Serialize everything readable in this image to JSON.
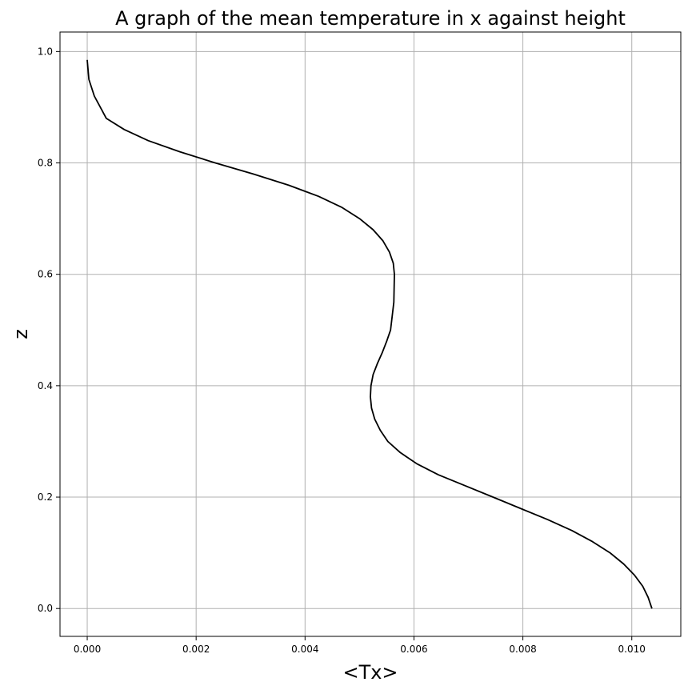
{
  "chart_data": {
    "type": "line",
    "title": "A graph of the mean temperature in x against height",
    "xlabel": "<Tx>",
    "ylabel": "z",
    "xlim": [
      -0.0005,
      0.0109
    ],
    "ylim": [
      -0.05,
      1.035
    ],
    "xticks": [
      0.0,
      0.002,
      0.004,
      0.006,
      0.008,
      0.01
    ],
    "xtick_labels": [
      "0.000",
      "0.002",
      "0.004",
      "0.006",
      "0.008",
      "0.010"
    ],
    "yticks": [
      0.0,
      0.2,
      0.4,
      0.6,
      0.8,
      1.0
    ],
    "ytick_labels": [
      "0.0",
      "0.2",
      "0.4",
      "0.6",
      "0.8",
      "1.0"
    ],
    "grid": true,
    "series": [
      {
        "color": "#000000",
        "x": [
          0.01037,
          0.0103,
          0.0102,
          0.01005,
          0.00985,
          0.0096,
          0.00928,
          0.0089,
          0.00845,
          0.00795,
          0.00745,
          0.00695,
          0.00645,
          0.00605,
          0.00575,
          0.00552,
          0.00538,
          0.00528,
          0.00522,
          0.0052,
          0.00521,
          0.00525,
          0.00533,
          0.00542,
          0.0055,
          0.00557,
          0.00563,
          0.00564,
          0.00562,
          0.00555,
          0.00543,
          0.00525,
          0.005,
          0.00468,
          0.00425,
          0.0037,
          0.00305,
          0.00235,
          0.0017,
          0.00112,
          0.00068,
          0.00035,
          0.00013,
          3e-05,
          0.0
        ],
        "y": [
          0.0,
          0.02,
          0.04,
          0.06,
          0.08,
          0.1,
          0.12,
          0.14,
          0.16,
          0.18,
          0.2,
          0.22,
          0.24,
          0.26,
          0.28,
          0.3,
          0.32,
          0.34,
          0.36,
          0.38,
          0.4,
          0.42,
          0.44,
          0.46,
          0.48,
          0.5,
          0.55,
          0.6,
          0.62,
          0.64,
          0.66,
          0.68,
          0.7,
          0.72,
          0.74,
          0.76,
          0.78,
          0.8,
          0.82,
          0.84,
          0.86,
          0.88,
          0.92,
          0.95,
          0.985
        ]
      }
    ]
  }
}
